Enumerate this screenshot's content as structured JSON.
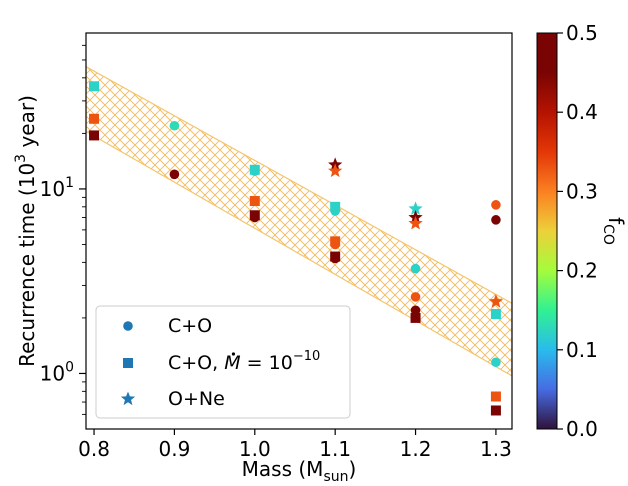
{
  "chart_data": {
    "type": "scatter",
    "xlabel": "Mass (M",
    "xlabel_sub": "sun",
    "xlabel_close": ")",
    "ylabel": "Recurrence time (10",
    "ylabel_sup": "3",
    "ylabel_close": " year)",
    "xlim": [
      0.79,
      1.32
    ],
    "ylim": [
      0.5,
      70
    ],
    "yscale": "log",
    "xticks": [
      {
        "value": 0.8,
        "label": "0.8"
      },
      {
        "value": 0.9,
        "label": "0.9"
      },
      {
        "value": 1.0,
        "label": "1.0"
      },
      {
        "value": 1.1,
        "label": "1.1"
      },
      {
        "value": 1.2,
        "label": "1.2"
      },
      {
        "value": 1.3,
        "label": "1.3"
      }
    ],
    "yticks": [
      {
        "value": 1,
        "base": "10",
        "exp": "0"
      },
      {
        "value": 10,
        "base": "10",
        "exp": "1"
      }
    ],
    "band": {
      "color": "#f5c56b",
      "upper": [
        {
          "x": 0.79,
          "y": 46
        },
        {
          "x": 1.32,
          "y": 2.4
        }
      ],
      "lower": [
        {
          "x": 0.79,
          "y": 20.5
        },
        {
          "x": 1.32,
          "y": 0.97
        }
      ]
    },
    "colorbar": {
      "label": "f",
      "label_sub": "CO",
      "range": [
        0.0,
        0.5
      ],
      "ticks": [
        {
          "value": 0.0,
          "label": "0.0"
        },
        {
          "value": 0.1,
          "label": "0.1"
        },
        {
          "value": 0.2,
          "label": "0.2"
        },
        {
          "value": 0.3,
          "label": "0.3"
        },
        {
          "value": 0.4,
          "label": "0.4"
        },
        {
          "value": 0.5,
          "label": "0.5"
        }
      ],
      "colormap": "turbo"
    },
    "legend": {
      "position": "lower-left",
      "color": "#1f77b4",
      "entries": [
        {
          "marker": "circle",
          "label": "C+O"
        },
        {
          "marker": "square",
          "label_pre": "C+O, ",
          "label_mdot": "M",
          "label_eq": " = 10",
          "label_exp": "−10"
        },
        {
          "marker": "star",
          "label": "O+Ne"
        }
      ]
    },
    "series": [
      {
        "name": "C+O",
        "marker": "circle",
        "points": [
          {
            "x": 0.9,
            "y": 22,
            "f": 0.13
          },
          {
            "x": 0.9,
            "y": 12,
            "f": 0.5
          },
          {
            "x": 1.0,
            "y": 12.5,
            "f": 0.12
          },
          {
            "x": 1.0,
            "y": 7.0,
            "f": 0.5
          },
          {
            "x": 1.1,
            "y": 7.6,
            "f": 0.12
          },
          {
            "x": 1.1,
            "y": 5.0,
            "f": 0.33
          },
          {
            "x": 1.1,
            "y": 4.2,
            "f": 0.5
          },
          {
            "x": 1.2,
            "y": 3.7,
            "f": 0.12
          },
          {
            "x": 1.2,
            "y": 2.6,
            "f": 0.33
          },
          {
            "x": 1.2,
            "y": 2.2,
            "f": 0.5
          },
          {
            "x": 1.3,
            "y": 8.2,
            "f": 0.33
          },
          {
            "x": 1.3,
            "y": 6.8,
            "f": 0.5
          },
          {
            "x": 1.3,
            "y": 1.15,
            "f": 0.12
          }
        ]
      },
      {
        "name": "C+O, Mdot = 10^-10",
        "marker": "square",
        "points": [
          {
            "x": 0.8,
            "y": 36,
            "f": 0.12
          },
          {
            "x": 0.8,
            "y": 24,
            "f": 0.33
          },
          {
            "x": 0.8,
            "y": 19.5,
            "f": 0.5
          },
          {
            "x": 1.0,
            "y": 12.7,
            "f": 0.12
          },
          {
            "x": 1.0,
            "y": 8.6,
            "f": 0.33
          },
          {
            "x": 1.0,
            "y": 7.2,
            "f": 0.5
          },
          {
            "x": 1.1,
            "y": 8.0,
            "f": 0.12
          },
          {
            "x": 1.1,
            "y": 5.2,
            "f": 0.33
          },
          {
            "x": 1.1,
            "y": 4.3,
            "f": 0.5
          },
          {
            "x": 1.2,
            "y": 2.0,
            "f": 0.5
          },
          {
            "x": 1.3,
            "y": 2.1,
            "f": 0.12
          },
          {
            "x": 1.3,
            "y": 0.75,
            "f": 0.33
          },
          {
            "x": 1.3,
            "y": 0.63,
            "f": 0.5
          }
        ]
      },
      {
        "name": "O+Ne",
        "marker": "star",
        "points": [
          {
            "x": 1.1,
            "y": 13.5,
            "f": 0.5
          },
          {
            "x": 1.1,
            "y": 12.5,
            "f": 0.33
          },
          {
            "x": 1.2,
            "y": 7.8,
            "f": 0.12
          },
          {
            "x": 1.2,
            "y": 7.0,
            "f": 0.5
          },
          {
            "x": 1.2,
            "y": 6.5,
            "f": 0.33
          },
          {
            "x": 1.3,
            "y": 2.45,
            "f": 0.33
          }
        ]
      }
    ]
  }
}
